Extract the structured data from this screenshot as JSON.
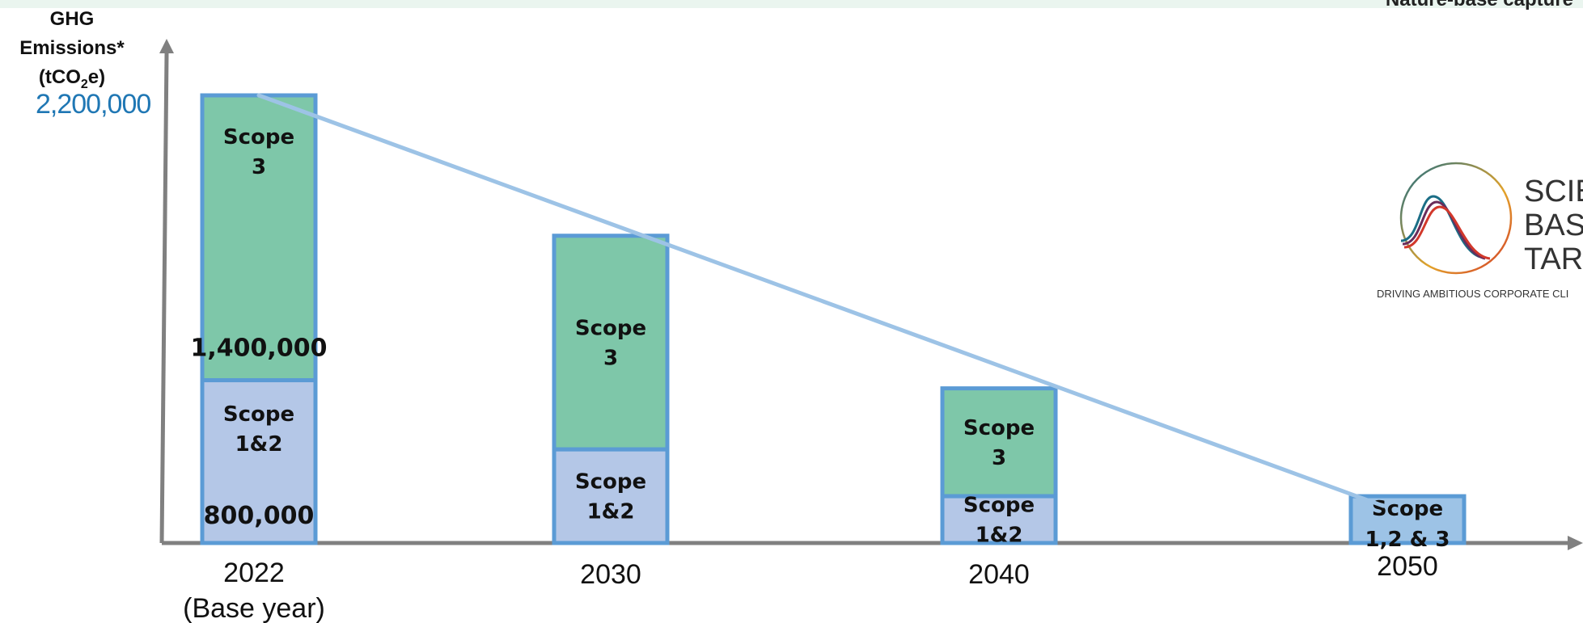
{
  "header": {
    "corner_text": "Nature-base capture"
  },
  "chart_data": {
    "type": "bar",
    "stacked": true,
    "ylabel_main": "GHG Emissions*",
    "ylabel_unit_pre": "(tCO",
    "ylabel_unit_sub": "2",
    "ylabel_unit_post": "e)",
    "ymax_label": "2,200,000",
    "ylim": [
      0,
      2200000
    ],
    "categories": [
      {
        "year": "2022",
        "note": "(Base year)"
      },
      {
        "year": "2030",
        "note": ""
      },
      {
        "year": "2040",
        "note": ""
      },
      {
        "year": "2050",
        "note": ""
      }
    ],
    "series": [
      {
        "name": "Scope 1&2",
        "values": [
          800000,
          460000,
          230000,
          230000
        ]
      },
      {
        "name": "Scope 3",
        "values": [
          1400000,
          1050000,
          530000,
          0
        ]
      }
    ],
    "segment_labels": [
      [
        {
          "lines": [
            "Scope",
            "1&2"
          ],
          "value": "800,000"
        },
        {
          "lines": [
            "Scope",
            "3"
          ],
          "value": "1,400,000"
        }
      ],
      [
        {
          "lines": [
            "Scope",
            "1&2"
          ],
          "value": ""
        },
        {
          "lines": [
            "Scope",
            "3"
          ],
          "value": ""
        }
      ],
      [
        {
          "lines": [
            "Scope",
            "1&2"
          ],
          "value": ""
        },
        {
          "lines": [
            "Scope",
            "3"
          ],
          "value": ""
        }
      ],
      [
        {
          "lines": [
            "Scope",
            "1,2 & 3"
          ],
          "value": ""
        }
      ]
    ],
    "trend_line": {
      "x": [
        "2022",
        "2050"
      ],
      "y": [
        2200000,
        230000
      ]
    },
    "colors": {
      "scope12": "#b4c7e7",
      "scope3": "#7ec7a9",
      "combined": "#9dc3e6",
      "bar_border": "#5b9bd5",
      "trend": "#9dc3e6",
      "axis": "#808080",
      "ymax_label": "#1f77b4"
    },
    "grid": false
  },
  "logo": {
    "words": [
      "SCIE",
      "BAS",
      "TARG"
    ],
    "tagline": "DRIVING AMBITIOUS CORPORATE CLI"
  }
}
